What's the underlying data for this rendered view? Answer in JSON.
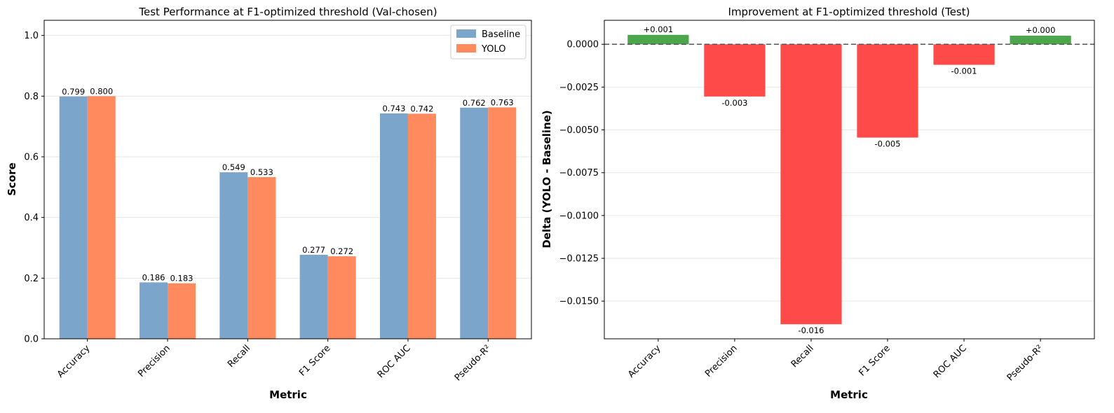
{
  "chart_data": [
    {
      "type": "bar",
      "title": "Test Performance at F1-optimized threshold (Val-chosen)",
      "xlabel": "Metric",
      "ylabel": "Score",
      "ylim": [
        0,
        1.05
      ],
      "yticks": [
        "0.0",
        "0.2",
        "0.4",
        "0.6",
        "0.8",
        "1.0"
      ],
      "grid": "horizontal",
      "legend": "top-right",
      "categories": [
        "Accuracy",
        "Precision",
        "Recall",
        "F1 Score",
        "ROC AUC",
        "Pseudo-R²"
      ],
      "series": [
        {
          "name": "Baseline",
          "color": "#7BA5CA",
          "values": [
            0.799,
            0.186,
            0.549,
            0.277,
            0.743,
            0.762
          ],
          "labels": [
            "0.799",
            "0.186",
            "0.549",
            "0.277",
            "0.743",
            "0.762"
          ]
        },
        {
          "name": "YOLO",
          "color": "#FF8A5E",
          "values": [
            0.8,
            0.183,
            0.533,
            0.272,
            0.742,
            0.763
          ],
          "labels": [
            "0.800",
            "0.183",
            "0.533",
            "0.272",
            "0.742",
            "0.763"
          ]
        }
      ]
    },
    {
      "type": "bar",
      "title": "Improvement at F1-optimized threshold (Test)",
      "xlabel": "Metric",
      "ylabel": "Delta (YOLO - Baseline)",
      "ylim": [
        -0.0172,
        0.0014
      ],
      "yticks": [
        "0.0000",
        "−0.0025",
        "−0.0050",
        "−0.0075",
        "−0.0100",
        "−0.0125",
        "−0.0150"
      ],
      "grid": "horizontal",
      "zero_line": "dashed",
      "positive_color": "#4CA64C",
      "negative_color": "#FF4A4A",
      "categories": [
        "Accuracy",
        "Precision",
        "Recall",
        "F1 Score",
        "ROC AUC",
        "Pseudo-R²"
      ],
      "values": [
        0.00055,
        -0.00305,
        -0.01635,
        -0.00545,
        -0.0012,
        0.0005
      ],
      "labels": [
        "+0.001",
        "-0.003",
        "-0.016",
        "-0.005",
        "-0.001",
        "+0.000"
      ]
    }
  ]
}
